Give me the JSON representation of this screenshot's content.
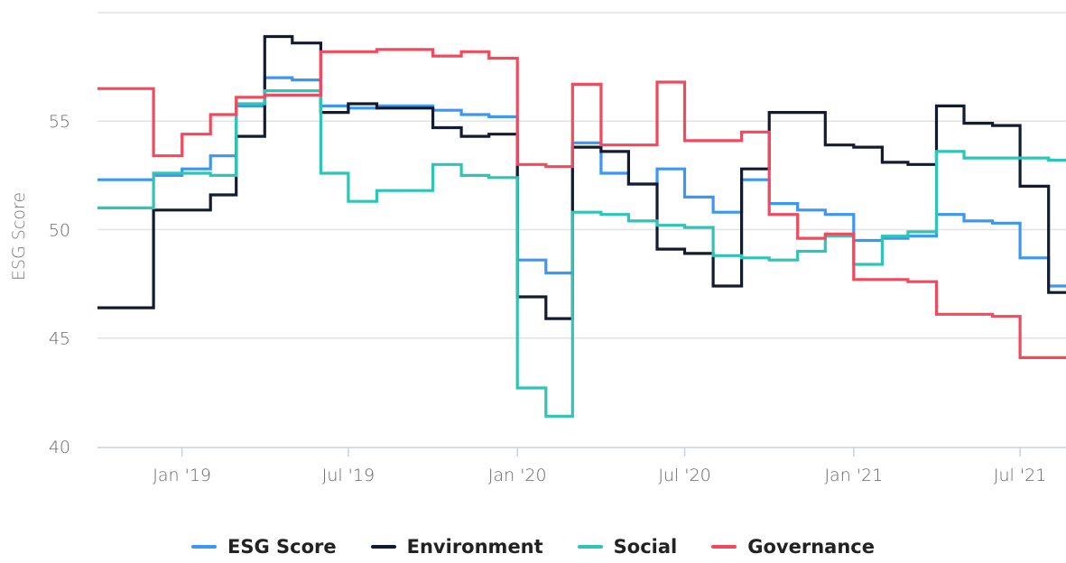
{
  "chart_data": {
    "type": "line",
    "ylabel": "ESG Score",
    "ylim": [
      39.5,
      60
    ],
    "y_ticks": [
      "40",
      "45",
      "50",
      "55"
    ],
    "y_tick_values": [
      40,
      45,
      50,
      55
    ],
    "x_ticks": [
      "Jan '19",
      "Jul '19",
      "Jan '20",
      "Jul '20",
      "Jan '21",
      "Jul '21"
    ],
    "x_tick_values": [
      "2019-01-01",
      "2019-07-01",
      "2020-01-01",
      "2020-07-01",
      "2021-01-01",
      "2021-07-01"
    ],
    "xlim": [
      "2018-10-01",
      "2021-08-20"
    ],
    "legend_position": "bottom",
    "grid": true,
    "series": [
      {
        "name": "ESG Score",
        "color": "#3d96f0",
        "points": [
          [
            "2018-10-01",
            52.3
          ],
          [
            "2018-11-01",
            52.3
          ],
          [
            "2018-12-01",
            52.5
          ],
          [
            "2019-01-01",
            52.8
          ],
          [
            "2019-02-01",
            53.4
          ],
          [
            "2019-03-01",
            55.7
          ],
          [
            "2019-04-01",
            57.0
          ],
          [
            "2019-05-01",
            56.9
          ],
          [
            "2019-06-01",
            55.7
          ],
          [
            "2019-07-01",
            55.6
          ],
          [
            "2019-08-01",
            55.7
          ],
          [
            "2019-09-01",
            55.7
          ],
          [
            "2019-10-01",
            55.5
          ],
          [
            "2019-11-01",
            55.3
          ],
          [
            "2019-12-01",
            55.2
          ],
          [
            "2020-01-01",
            48.6
          ],
          [
            "2020-02-01",
            48.0
          ],
          [
            "2020-03-01",
            54.0
          ],
          [
            "2020-04-01",
            52.6
          ],
          [
            "2020-05-01",
            52.1
          ],
          [
            "2020-06-01",
            52.8
          ],
          [
            "2020-07-01",
            51.5
          ],
          [
            "2020-08-01",
            50.8
          ],
          [
            "2020-09-01",
            52.3
          ],
          [
            "2020-10-01",
            51.2
          ],
          [
            "2020-11-01",
            50.9
          ],
          [
            "2020-12-01",
            50.7
          ],
          [
            "2021-01-01",
            49.5
          ],
          [
            "2021-02-01",
            49.6
          ],
          [
            "2021-03-01",
            49.7
          ],
          [
            "2021-04-01",
            50.7
          ],
          [
            "2021-05-01",
            50.4
          ],
          [
            "2021-06-01",
            50.3
          ],
          [
            "2021-07-01",
            48.7
          ],
          [
            "2021-08-01",
            47.4
          ],
          [
            "2021-08-20",
            47.4
          ]
        ]
      },
      {
        "name": "Environment",
        "color": "#131b31",
        "points": [
          [
            "2018-10-01",
            46.4
          ],
          [
            "2018-11-01",
            46.4
          ],
          [
            "2018-12-01",
            50.9
          ],
          [
            "2019-01-01",
            50.9
          ],
          [
            "2019-02-01",
            51.6
          ],
          [
            "2019-03-01",
            54.3
          ],
          [
            "2019-04-01",
            58.9
          ],
          [
            "2019-05-01",
            58.6
          ],
          [
            "2019-06-01",
            55.4
          ],
          [
            "2019-07-01",
            55.8
          ],
          [
            "2019-08-01",
            55.6
          ],
          [
            "2019-09-01",
            55.6
          ],
          [
            "2019-10-01",
            54.7
          ],
          [
            "2019-11-01",
            54.3
          ],
          [
            "2019-12-01",
            54.4
          ],
          [
            "2020-01-01",
            46.9
          ],
          [
            "2020-02-01",
            45.9
          ],
          [
            "2020-03-01",
            53.8
          ],
          [
            "2020-04-01",
            53.6
          ],
          [
            "2020-05-01",
            52.1
          ],
          [
            "2020-06-01",
            49.1
          ],
          [
            "2020-07-01",
            48.9
          ],
          [
            "2020-08-01",
            47.4
          ],
          [
            "2020-09-01",
            52.8
          ],
          [
            "2020-10-01",
            55.4
          ],
          [
            "2020-11-01",
            55.4
          ],
          [
            "2020-12-01",
            53.9
          ],
          [
            "2021-01-01",
            53.8
          ],
          [
            "2021-02-01",
            53.1
          ],
          [
            "2021-03-01",
            53.0
          ],
          [
            "2021-04-01",
            55.7
          ],
          [
            "2021-05-01",
            54.9
          ],
          [
            "2021-06-01",
            54.8
          ],
          [
            "2021-07-01",
            52.0
          ],
          [
            "2021-08-01",
            47.1
          ],
          [
            "2021-08-20",
            47.1
          ]
        ]
      },
      {
        "name": "Social",
        "color": "#2ec4b6",
        "points": [
          [
            "2018-10-01",
            51.0
          ],
          [
            "2018-11-01",
            51.0
          ],
          [
            "2018-12-01",
            52.6
          ],
          [
            "2019-01-01",
            52.6
          ],
          [
            "2019-02-01",
            52.5
          ],
          [
            "2019-03-01",
            55.8
          ],
          [
            "2019-04-01",
            56.4
          ],
          [
            "2019-05-01",
            56.4
          ],
          [
            "2019-06-01",
            52.6
          ],
          [
            "2019-07-01",
            51.3
          ],
          [
            "2019-08-01",
            51.8
          ],
          [
            "2019-09-01",
            51.8
          ],
          [
            "2019-10-01",
            53.0
          ],
          [
            "2019-11-01",
            52.5
          ],
          [
            "2019-12-01",
            52.4
          ],
          [
            "2020-01-01",
            42.7
          ],
          [
            "2020-02-01",
            41.4
          ],
          [
            "2020-03-01",
            50.8
          ],
          [
            "2020-04-01",
            50.7
          ],
          [
            "2020-05-01",
            50.4
          ],
          [
            "2020-06-01",
            50.2
          ],
          [
            "2020-07-01",
            50.1
          ],
          [
            "2020-08-01",
            48.8
          ],
          [
            "2020-09-01",
            48.7
          ],
          [
            "2020-10-01",
            48.6
          ],
          [
            "2020-11-01",
            49.0
          ],
          [
            "2020-12-01",
            49.7
          ],
          [
            "2021-01-01",
            48.4
          ],
          [
            "2021-02-01",
            49.7
          ],
          [
            "2021-03-01",
            49.9
          ],
          [
            "2021-04-01",
            53.6
          ],
          [
            "2021-05-01",
            53.3
          ],
          [
            "2021-06-01",
            53.3
          ],
          [
            "2021-07-01",
            53.3
          ],
          [
            "2021-08-01",
            53.2
          ],
          [
            "2021-08-20",
            53.2
          ]
        ]
      },
      {
        "name": "Governance",
        "color": "#f04a5e",
        "points": [
          [
            "2018-10-01",
            56.5
          ],
          [
            "2018-11-01",
            56.5
          ],
          [
            "2018-12-01",
            53.4
          ],
          [
            "2019-01-01",
            54.4
          ],
          [
            "2019-02-01",
            55.3
          ],
          [
            "2019-03-01",
            56.1
          ],
          [
            "2019-04-01",
            56.2
          ],
          [
            "2019-05-01",
            56.2
          ],
          [
            "2019-06-01",
            58.2
          ],
          [
            "2019-07-01",
            58.2
          ],
          [
            "2019-08-01",
            58.3
          ],
          [
            "2019-09-01",
            58.3
          ],
          [
            "2019-10-01",
            58.0
          ],
          [
            "2019-11-01",
            58.2
          ],
          [
            "2019-12-01",
            57.9
          ],
          [
            "2020-01-01",
            53.0
          ],
          [
            "2020-02-01",
            52.9
          ],
          [
            "2020-03-01",
            56.7
          ],
          [
            "2020-04-01",
            53.9
          ],
          [
            "2020-05-01",
            53.9
          ],
          [
            "2020-06-01",
            56.8
          ],
          [
            "2020-07-01",
            54.1
          ],
          [
            "2020-08-01",
            54.1
          ],
          [
            "2020-09-01",
            54.5
          ],
          [
            "2020-10-01",
            50.7
          ],
          [
            "2020-11-01",
            49.6
          ],
          [
            "2020-12-01",
            49.8
          ],
          [
            "2021-01-01",
            47.7
          ],
          [
            "2021-02-01",
            47.7
          ],
          [
            "2021-03-01",
            47.6
          ],
          [
            "2021-04-01",
            46.1
          ],
          [
            "2021-05-01",
            46.1
          ],
          [
            "2021-06-01",
            46.0
          ],
          [
            "2021-07-01",
            44.1
          ],
          [
            "2021-08-01",
            44.1
          ],
          [
            "2021-08-20",
            44.1
          ]
        ]
      }
    ]
  }
}
